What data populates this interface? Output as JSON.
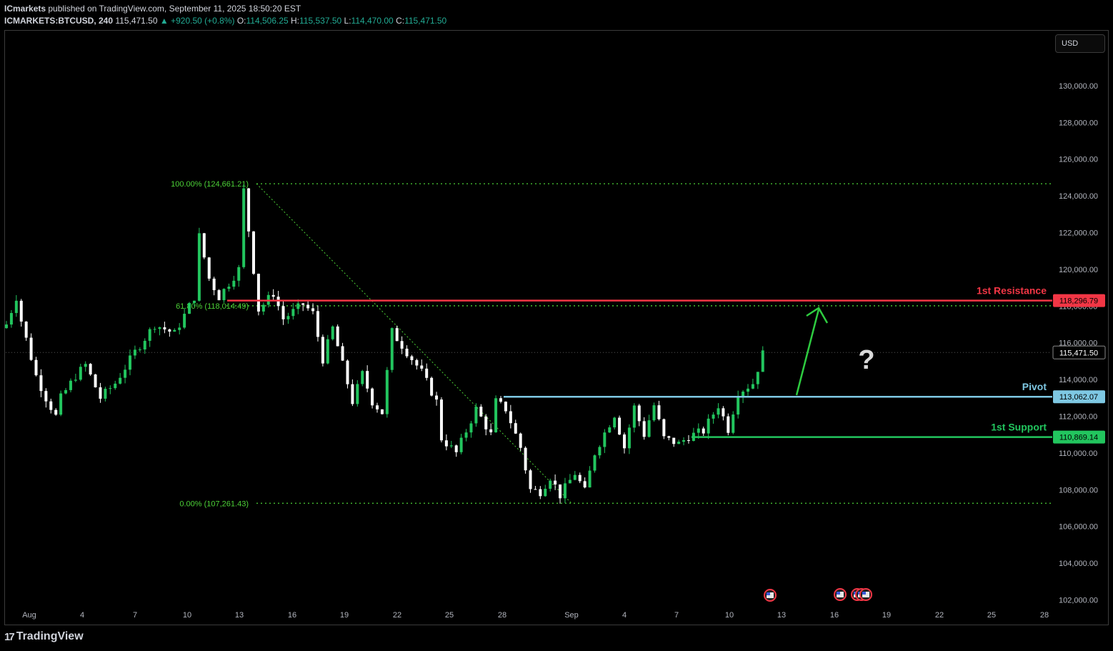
{
  "header": {
    "publisher": "ICmarkets",
    "published_text": "published on TradingView.com, September 11, 2025 18:50:20 EST",
    "symbol": "ICMARKETS:BTCUSD, 240",
    "last": "115,471.50",
    "change": "▲ +920.50 (+0.8%)",
    "o_label": "O:",
    "o_value": "114,506.25",
    "h_label": "H:",
    "h_value": "115,537.50",
    "l_label": "L:",
    "l_value": "114,470.00",
    "c_label": "C:",
    "c_value": "115,471.50"
  },
  "currency_button": "USD",
  "footer": {
    "brand": "TradingView",
    "logo_mark": "17"
  },
  "colors": {
    "up": "#22c55e",
    "down": "#ffffff",
    "resistance": "#f23645",
    "pivot": "#7ec8e3",
    "support": "#22c55e",
    "fib": "#4cd137",
    "arrow": "#2ecc40"
  },
  "chart_data": {
    "type": "candlestick",
    "y_range": [
      101000,
      132000
    ],
    "y_ticks": [
      {
        "v": 102000,
        "t": "102,000.00"
      },
      {
        "v": 104000,
        "t": "104,000.00"
      },
      {
        "v": 106000,
        "t": "106,000.00"
      },
      {
        "v": 108000,
        "t": "108,000.00"
      },
      {
        "v": 110000,
        "t": "110,000.00"
      },
      {
        "v": 112000,
        "t": "112,000.00"
      },
      {
        "v": 114000,
        "t": "114,000.00"
      },
      {
        "v": 116000,
        "t": "116,000.00"
      },
      {
        "v": 118000,
        "t": "118,000.00"
      },
      {
        "v": 120000,
        "t": "120,000.00"
      },
      {
        "v": 122000,
        "t": "122,000.00"
      },
      {
        "v": 124000,
        "t": "124,000.00"
      },
      {
        "v": 126000,
        "t": "126,000.00"
      },
      {
        "v": 128000,
        "t": "128,000.00"
      },
      {
        "v": 130000,
        "t": "130,000.00"
      }
    ],
    "x_ticks": [
      "Aug",
      "4",
      "7",
      "10",
      "13",
      "16",
      "19",
      "22",
      "25",
      "28",
      "Sep",
      "4",
      "7",
      "10",
      "13",
      "16",
      "19",
      "22",
      "25",
      "28"
    ],
    "anchors": [
      [
        0,
        117000
      ],
      [
        2,
        118500
      ],
      [
        3,
        117200
      ],
      [
        6,
        114200
      ],
      [
        8,
        113000
      ],
      [
        10,
        112000
      ],
      [
        11,
        113000
      ],
      [
        14,
        114200
      ],
      [
        16,
        114800
      ],
      [
        19,
        113000
      ],
      [
        22,
        113800
      ],
      [
        26,
        115500
      ],
      [
        30,
        117000
      ],
      [
        34,
        116500
      ],
      [
        38,
        118500
      ],
      [
        39,
        121800
      ],
      [
        41,
        119500
      ],
      [
        43,
        118500
      ],
      [
        47,
        120000
      ],
      [
        48,
        124300
      ],
      [
        51,
        117800
      ],
      [
        54,
        118700
      ],
      [
        56,
        117300
      ],
      [
        60,
        118100
      ],
      [
        62,
        117600
      ],
      [
        64,
        115100
      ],
      [
        66,
        116800
      ],
      [
        70,
        112800
      ],
      [
        72,
        114300
      ],
      [
        74,
        112800
      ],
      [
        76,
        112200
      ],
      [
        78,
        116600
      ],
      [
        81,
        115500
      ],
      [
        84,
        114400
      ],
      [
        87,
        112800
      ],
      [
        88,
        110800
      ],
      [
        91,
        110000
      ],
      [
        95,
        112400
      ],
      [
        98,
        111000
      ],
      [
        99,
        112800
      ],
      [
        101,
        112400
      ],
      [
        104,
        110300
      ],
      [
        106,
        108000
      ],
      [
        108,
        107900
      ],
      [
        110,
        108700
      ],
      [
        112,
        107700
      ],
      [
        115,
        108900
      ],
      [
        117,
        107900
      ],
      [
        119,
        110000
      ],
      [
        121,
        111100
      ],
      [
        123,
        112100
      ],
      [
        125,
        110300
      ],
      [
        127,
        112500
      ],
      [
        129,
        111000
      ],
      [
        131,
        112600
      ],
      [
        133,
        110800
      ],
      [
        136,
        110500
      ],
      [
        138,
        110900
      ],
      [
        141,
        111200
      ],
      [
        144,
        112600
      ],
      [
        146,
        111300
      ],
      [
        148,
        113300
      ],
      [
        151,
        113800
      ],
      [
        153,
        115400
      ]
    ],
    "levels": [
      {
        "name": "1st Resistance",
        "value": 118296.79,
        "label": "118,296.79"
      },
      {
        "name": "Pivot",
        "value": 113062.07,
        "label": "113,062.07"
      },
      {
        "name": "1st Support",
        "value": 110869.14,
        "label": "110,869.14"
      }
    ],
    "fib": [
      {
        "text": "100.00% (124,661.21)",
        "value": 124661.21
      },
      {
        "text": "61.80% (118,014.49)",
        "value": 118014.49
      },
      {
        "text": "0.00% (107,261.43)",
        "value": 107261.43
      }
    ],
    "last_price": {
      "value": 115471.5,
      "label": "115,471.50"
    },
    "annotation": "?"
  }
}
